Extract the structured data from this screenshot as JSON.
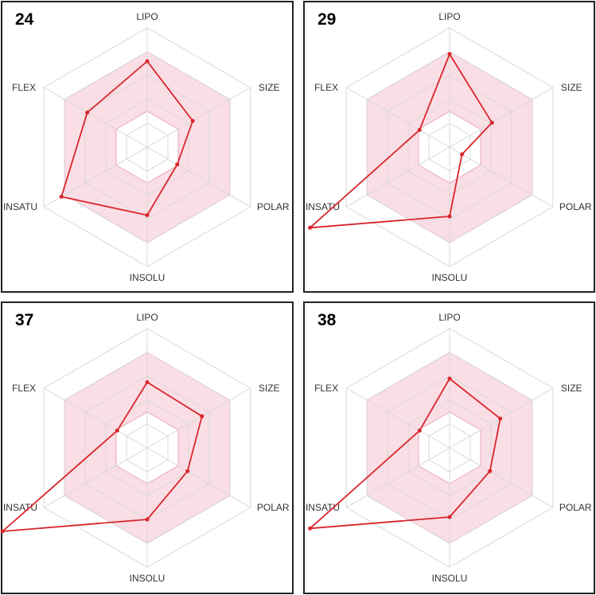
{
  "chart_data": [
    {
      "type": "radar",
      "title": "24",
      "axes": [
        "LIPO",
        "SIZE",
        "POLAR",
        "INSOLU",
        "INSATU",
        "FLEX"
      ],
      "series": [
        {
          "values": [
            0.72,
            0.44,
            0.29,
            0.57,
            0.83,
            0.58
          ]
        }
      ],
      "inner_range": [
        0.3,
        0.8
      ],
      "rlim": [
        0,
        1.0
      ],
      "grid": true,
      "line_color": "#d9262c",
      "band_color": "#f7c8d3"
    },
    {
      "type": "radar",
      "title": "29",
      "axes": [
        "LIPO",
        "SIZE",
        "POLAR",
        "INSOLU",
        "INSATU",
        "FLEX"
      ],
      "series": [
        {
          "values": [
            0.78,
            0.41,
            0.12,
            0.58,
            1.35,
            0.29
          ]
        }
      ],
      "inner_range": [
        0.3,
        0.8
      ],
      "rlim": [
        0,
        1.0
      ],
      "grid": true,
      "line_color": "#d9262c",
      "band_color": "#f7c8d3"
    },
    {
      "type": "radar",
      "title": "37",
      "axes": [
        "LIPO",
        "SIZE",
        "POLAR",
        "INSOLU",
        "INSATU",
        "FLEX"
      ],
      "series": [
        {
          "values": [
            0.55,
            0.53,
            0.39,
            0.6,
            1.4,
            0.29
          ]
        }
      ],
      "inner_range": [
        0.3,
        0.8
      ],
      "rlim": [
        0,
        1.0
      ],
      "grid": true,
      "line_color": "#d9262c",
      "band_color": "#f7c8d3"
    },
    {
      "type": "radar",
      "title": "38",
      "axes": [
        "LIPO",
        "SIZE",
        "POLAR",
        "INSOLU",
        "INSATU",
        "FLEX"
      ],
      "series": [
        {
          "values": [
            0.58,
            0.49,
            0.39,
            0.58,
            1.35,
            0.29
          ]
        }
      ],
      "inner_range": [
        0.3,
        0.8
      ],
      "rlim": [
        0,
        1.0
      ],
      "grid": true,
      "line_color": "#d9262c",
      "band_color": "#f7c8d3"
    }
  ]
}
